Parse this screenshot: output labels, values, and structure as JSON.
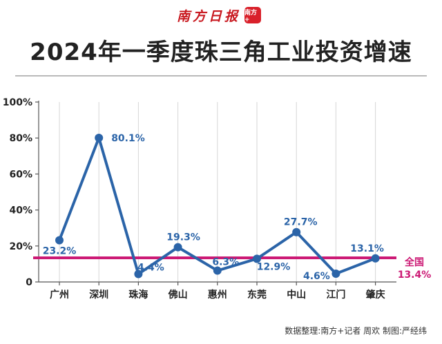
{
  "header": {
    "logo_text": "南方日报",
    "logo_badge": "南方+",
    "title": "2024年一季度珠三角工业投资增速"
  },
  "chart_data": {
    "type": "line",
    "title": "2024年一季度珠三角工业投资增速",
    "categories": [
      "广州",
      "深圳",
      "珠海",
      "佛山",
      "惠州",
      "东莞",
      "中山",
      "江门",
      "肇庆"
    ],
    "values": [
      23.2,
      80.1,
      4.4,
      19.3,
      6.3,
      12.9,
      27.7,
      4.6,
      13.1
    ],
    "data_labels": [
      "23.2%",
      "80.1%",
      "4.4%",
      "19.3%",
      "6.3%",
      "12.9%",
      "27.7%",
      "4.6%",
      "13.1%"
    ],
    "y_ticks": [
      "0",
      "20%",
      "40%",
      "60%",
      "80%",
      "100%"
    ],
    "ylim": [
      0,
      100
    ],
    "grid": "vertical",
    "series_color": "#2b64a8",
    "reference_line": {
      "label": "全国",
      "value": 13.4,
      "value_label": "13.4%",
      "color": "#cc1a75"
    }
  },
  "footer": {
    "source": "数据整理:南方+记者 周欢 制图:严经纬"
  }
}
